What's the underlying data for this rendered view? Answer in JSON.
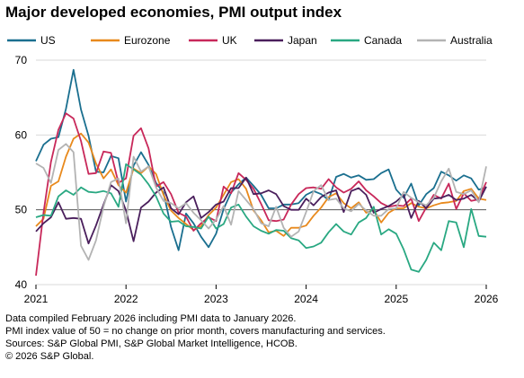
{
  "title": "Major developed economies, PMI output index",
  "notes": [
    "Data compiled February 2026 including PMI data to January 2026.",
    "PMI index value of 50 = no change on prior month, covers manufacturing and services.",
    "Sources: S&P Global PMI, S&P Global Market Intelligence, HCOB.",
    "© 2026 S&P Global."
  ],
  "chart_data": {
    "type": "line",
    "title": "Major developed economies, PMI output index",
    "xlabel": "",
    "ylabel": "",
    "x_ticks": [
      "2021",
      "2022",
      "2023",
      "2024",
      "2025",
      "2026"
    ],
    "y_ticks": [
      40,
      50,
      60,
      70
    ],
    "ylim": [
      40,
      70
    ],
    "x_range": [
      "2021-01",
      "2026-01"
    ],
    "grid": "horizontal",
    "legend_position": "top",
    "x": [
      "2021-01",
      "2021-02",
      "2021-03",
      "2021-04",
      "2021-05",
      "2021-06",
      "2021-07",
      "2021-08",
      "2021-09",
      "2021-10",
      "2021-11",
      "2021-12",
      "2022-01",
      "2022-02",
      "2022-03",
      "2022-04",
      "2022-05",
      "2022-06",
      "2022-07",
      "2022-08",
      "2022-09",
      "2022-10",
      "2022-11",
      "2022-12",
      "2023-01",
      "2023-02",
      "2023-03",
      "2023-04",
      "2023-05",
      "2023-06",
      "2023-07",
      "2023-08",
      "2023-09",
      "2023-10",
      "2023-11",
      "2023-12",
      "2024-01",
      "2024-02",
      "2024-03",
      "2024-04",
      "2024-05",
      "2024-06",
      "2024-07",
      "2024-08",
      "2024-09",
      "2024-10",
      "2024-11",
      "2024-12",
      "2025-01",
      "2025-02",
      "2025-03",
      "2025-04",
      "2025-05",
      "2025-06",
      "2025-07",
      "2025-08",
      "2025-09",
      "2025-10",
      "2025-11",
      "2025-12",
      "2026-01"
    ],
    "series": [
      {
        "name": "US",
        "color": "#1a6f8f",
        "values": [
          56.5,
          58.7,
          59.5,
          59.7,
          63.5,
          68.7,
          63.4,
          59.9,
          55.1,
          55.0,
          57.2,
          56.9,
          51.1,
          55.9,
          57.7,
          56.0,
          53.6,
          52.3,
          47.7,
          44.6,
          49.5,
          48.2,
          46.4,
          45.0,
          46.8,
          50.1,
          52.3,
          53.4,
          54.3,
          53.2,
          52.0,
          50.2,
          50.2,
          50.7,
          50.7,
          50.9,
          52.0,
          52.5,
          52.1,
          51.3,
          54.4,
          54.8,
          54.3,
          54.6,
          54.0,
          54.1,
          54.9,
          55.4,
          52.7,
          51.6,
          53.5,
          50.6,
          52.1,
          52.9,
          55.1,
          54.6,
          53.9,
          54.6,
          54.2,
          52.7,
          53.0
        ]
      },
      {
        "name": "Eurozone",
        "color": "#e8891c",
        "values": [
          47.8,
          48.8,
          53.2,
          53.8,
          57.1,
          59.5,
          60.2,
          59.0,
          56.2,
          54.2,
          55.4,
          53.3,
          52.3,
          55.5,
          54.9,
          55.8,
          54.8,
          52.0,
          49.9,
          48.9,
          48.1,
          47.3,
          47.8,
          49.3,
          50.3,
          52.0,
          53.7,
          54.1,
          52.8,
          49.9,
          48.6,
          47.0,
          47.2,
          46.5,
          47.6,
          47.6,
          47.9,
          49.2,
          50.3,
          51.7,
          52.2,
          50.9,
          50.2,
          51.0,
          49.6,
          50.0,
          48.3,
          49.6,
          50.2,
          50.2,
          50.9,
          50.4,
          50.2,
          50.6,
          50.9,
          51.0,
          51.2,
          52.5,
          52.8,
          51.5,
          51.3
        ]
      },
      {
        "name": "UK",
        "color": "#c8285a",
        "values": [
          41.2,
          49.6,
          56.4,
          60.7,
          62.9,
          62.2,
          59.2,
          54.8,
          54.9,
          57.8,
          57.6,
          53.6,
          54.2,
          59.9,
          60.9,
          58.2,
          53.1,
          53.7,
          52.1,
          49.6,
          49.1,
          47.2,
          48.2,
          49.0,
          48.5,
          53.1,
          52.2,
          54.9,
          54.0,
          52.8,
          50.8,
          48.6,
          48.5,
          48.7,
          50.7,
          52.1,
          52.9,
          53.0,
          52.8,
          54.1,
          53.0,
          52.3,
          52.8,
          53.8,
          52.6,
          51.8,
          50.9,
          50.4,
          50.6,
          50.5,
          51.5,
          48.5,
          50.3,
          52.0,
          51.5,
          53.5,
          50.1,
          52.2,
          51.2,
          51.4,
          53.7
        ]
      },
      {
        "name": "Japan",
        "color": "#4a1f5c",
        "values": [
          47.1,
          48.2,
          49.0,
          51.0,
          48.8,
          48.9,
          48.8,
          45.5,
          47.9,
          50.7,
          53.3,
          52.5,
          49.9,
          45.8,
          50.3,
          51.1,
          52.3,
          53.0,
          50.2,
          49.4,
          51.0,
          51.8,
          48.9,
          49.7,
          50.7,
          51.1,
          52.9,
          52.9,
          54.3,
          52.1,
          52.2,
          52.6,
          52.1,
          50.5,
          50.0,
          50.0,
          51.5,
          50.6,
          51.7,
          52.3,
          52.6,
          49.7,
          52.5,
          52.9,
          52.0,
          49.6,
          50.1,
          50.5,
          51.1,
          52.0,
          48.9,
          51.2,
          50.2,
          51.5,
          51.6,
          52.0,
          51.3,
          51.5,
          52.0,
          51.1,
          53.1
        ]
      },
      {
        "name": "Canada",
        "color": "#29a882",
        "values": [
          49.0,
          49.3,
          49.2,
          51.8,
          52.6,
          52.0,
          53.0,
          52.4,
          52.3,
          52.5,
          52.2,
          50.4,
          56.1,
          55.4,
          54.7,
          53.4,
          51.8,
          49.5,
          48.4,
          48.5,
          47.8,
          47.7,
          47.5,
          49.1,
          47.5,
          48.1,
          50.3,
          50.7,
          49.1,
          47.8,
          47.2,
          46.8,
          47.3,
          47.2,
          46.2,
          45.9,
          44.9,
          45.1,
          45.6,
          47.0,
          48.1,
          47.1,
          46.7,
          48.3,
          48.9,
          50.4,
          46.7,
          47.4,
          46.8,
          44.7,
          42.0,
          41.7,
          43.3,
          45.6,
          44.6,
          48.5,
          48.3,
          45.0,
          50.1,
          46.5,
          46.4
        ]
      },
      {
        "name": "Australia",
        "color": "#b3b3b3",
        "values": [
          56.2,
          55.6,
          53.6,
          58.0,
          58.8,
          57.7,
          45.2,
          43.3,
          45.9,
          50.4,
          53.7,
          54.2,
          48.2,
          57.1,
          55.1,
          55.8,
          53.0,
          51.2,
          50.9,
          50.2,
          50.9,
          49.6,
          48.6,
          47.5,
          48.7,
          50.5,
          48.0,
          52.5,
          51.3,
          50.1,
          48.2,
          47.8,
          50.4,
          47.6,
          46.4,
          47.1,
          49.7,
          52.5,
          53.3,
          51.3,
          51.5,
          50.2,
          49.8,
          50.8,
          49.9,
          49.2,
          49.2,
          50.1,
          50.2,
          52.4,
          51.6,
          51.0,
          50.6,
          51.6,
          53.8,
          55.5,
          52.4,
          52.1,
          52.6,
          51.0,
          55.8
        ]
      }
    ]
  }
}
